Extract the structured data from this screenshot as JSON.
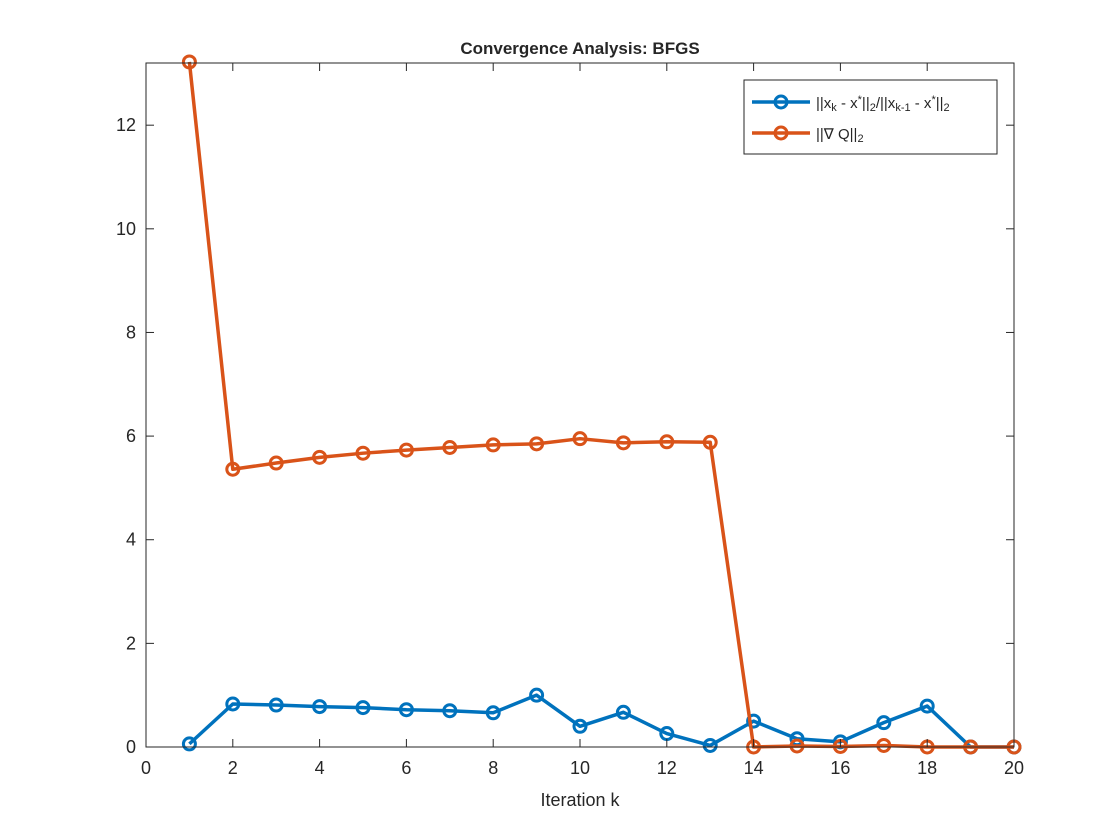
{
  "chart_data": {
    "type": "line",
    "title": "Convergence Analysis: BFGS",
    "xlabel": "Iteration k",
    "ylabel": "",
    "xlim": [
      0,
      20
    ],
    "ylim": [
      0,
      13.2
    ],
    "xticks": [
      0,
      2,
      4,
      6,
      8,
      10,
      12,
      14,
      16,
      18,
      20
    ],
    "yticks": [
      0,
      2,
      4,
      6,
      8,
      10,
      12
    ],
    "grid": false,
    "legend_location": "top-right",
    "x": [
      1,
      2,
      3,
      4,
      5,
      6,
      7,
      8,
      9,
      10,
      11,
      12,
      13,
      14,
      15,
      16,
      17,
      18,
      19,
      20
    ],
    "series": [
      {
        "name": "||x_k - x*||_2/||x_{k-1} - x*||_2",
        "color": "#0072BD",
        "marker": "circle",
        "values": [
          0.06,
          0.83,
          0.81,
          0.78,
          0.76,
          0.72,
          0.7,
          0.66,
          1.0,
          0.4,
          0.67,
          0.26,
          0.03,
          0.5,
          0.16,
          0.1,
          0.47,
          0.79,
          0.0,
          0.0
        ]
      },
      {
        "name": "||∇ Q||_2",
        "color": "#D95319",
        "marker": "circle",
        "values": [
          13.22,
          5.36,
          5.48,
          5.59,
          5.67,
          5.73,
          5.78,
          5.83,
          5.85,
          5.95,
          5.87,
          5.89,
          5.88,
          0.0,
          0.02,
          0.01,
          0.03,
          0.0,
          0.0,
          0.0
        ]
      }
    ],
    "legend": [
      {
        "parts": [
          {
            "t": "||x"
          },
          {
            "t": "k",
            "s": "sub"
          },
          {
            "t": " - x"
          },
          {
            "t": "*",
            "s": "sup"
          },
          {
            "t": "||"
          },
          {
            "t": "2",
            "s": "sub"
          },
          {
            "t": "/||x"
          },
          {
            "t": "k-1",
            "s": "sub"
          },
          {
            "t": " - x"
          },
          {
            "t": "*",
            "s": "sup"
          },
          {
            "t": "||"
          },
          {
            "t": "2",
            "s": "sub"
          }
        ]
      },
      {
        "parts": [
          {
            "t": "||∇ Q||"
          },
          {
            "t": "2",
            "s": "sub"
          }
        ]
      }
    ]
  }
}
